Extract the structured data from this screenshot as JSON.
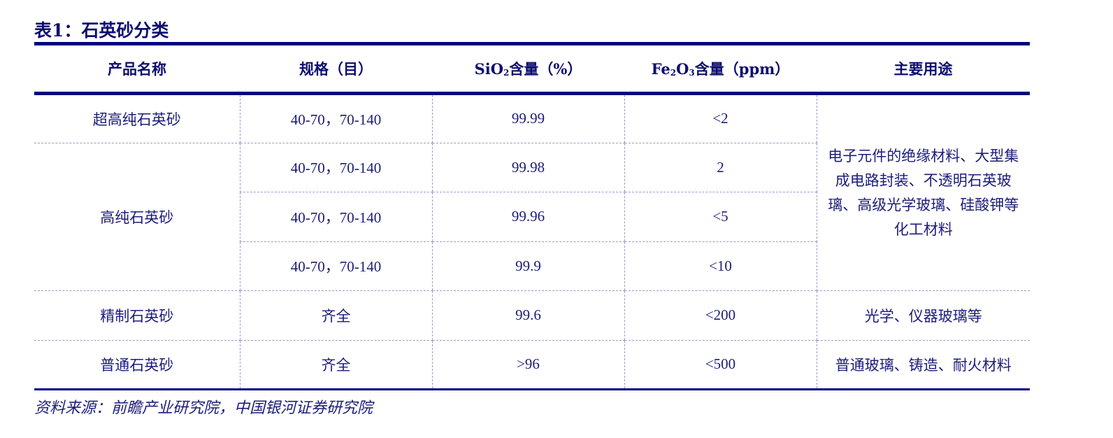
{
  "title": "表1：石英砂分类",
  "headers": {
    "name": "产品名称",
    "spec": "规格（目）",
    "sio2_prefix": "SiO",
    "sio2_sub": "2",
    "sio2_suffix": "含量（%）",
    "fe2o3_prefix": "Fe",
    "fe2o3_sub1": "2",
    "fe2o3_mid": "O",
    "fe2o3_sub2": "3",
    "fe2o3_suffix": "含量（ppm）",
    "use": "主要用途"
  },
  "rows": [
    {
      "name": "超高纯石英砂",
      "spec": "40-70，70-140",
      "sio2": "99.99",
      "fe2o3": "<2"
    },
    {
      "name": "高纯石英砂",
      "spec": "40-70，70-140",
      "sio2": "99.98",
      "fe2o3": "2"
    },
    {
      "spec": "40-70，70-140",
      "sio2": "99.96",
      "fe2o3": "<5"
    },
    {
      "spec": "40-70，70-140",
      "sio2": "99.9",
      "fe2o3": "<10"
    },
    {
      "name": "精制石英砂",
      "spec": "齐全",
      "sio2": "99.6",
      "fe2o3": "<200",
      "use": "光学、仪器玻璃等"
    },
    {
      "name": "普通石英砂",
      "spec": "齐全",
      "sio2": ">96",
      "fe2o3": "<500",
      "use": "普通玻璃、铸造、耐火材料"
    }
  ],
  "merged_use_top": "电子元件的绝缘材料、大型集成电路封装、不透明石英玻璃、高级光学玻璃、硅酸钾等化工材料",
  "source": "资料来源：前瞻产业研究院，中国银河证券研究院"
}
